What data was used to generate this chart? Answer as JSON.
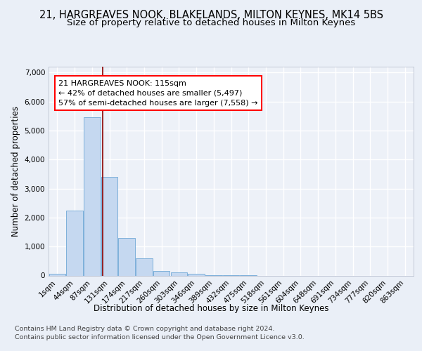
{
  "title_line1": "21, HARGREAVES NOOK, BLAKELANDS, MILTON KEYNES, MK14 5BS",
  "title_line2": "Size of property relative to detached houses in Milton Keynes",
  "xlabel": "Distribution of detached houses by size in Milton Keynes",
  "ylabel": "Number of detached properties",
  "footer_line1": "Contains HM Land Registry data © Crown copyright and database right 2024.",
  "footer_line2": "Contains public sector information licensed under the Open Government Licence v3.0.",
  "bar_labels": [
    "1sqm",
    "44sqm",
    "87sqm",
    "131sqm",
    "174sqm",
    "217sqm",
    "260sqm",
    "303sqm",
    "346sqm",
    "389sqm",
    "432sqm",
    "475sqm",
    "518sqm",
    "561sqm",
    "604sqm",
    "648sqm",
    "691sqm",
    "734sqm",
    "777sqm",
    "820sqm",
    "863sqm"
  ],
  "bar_values": [
    55,
    2250,
    5450,
    3400,
    1300,
    600,
    150,
    100,
    55,
    5,
    2,
    1,
    0,
    0,
    0,
    0,
    0,
    0,
    0,
    0,
    0
  ],
  "bar_color": "#c5d8f0",
  "bar_edge_color": "#6fa8d6",
  "property_label": "21 HARGREAVES NOOK: 115sqm",
  "annotation_line1": "← 42% of detached houses are smaller (5,497)",
  "annotation_line2": "57% of semi-detached houses are larger (7,558) →",
  "vline_color": "#8b0000",
  "vline_x": 2.62,
  "ylim": [
    0,
    7200
  ],
  "yticks": [
    0,
    1000,
    2000,
    3000,
    4000,
    5000,
    6000,
    7000
  ],
  "bg_color": "#eaeff7",
  "plot_bg_color": "#edf1f8",
  "grid_color": "#ffffff",
  "title_fontsize": 10.5,
  "subtitle_fontsize": 9.5,
  "axis_label_fontsize": 8.5,
  "tick_fontsize": 7.5,
  "footer_fontsize": 6.8
}
